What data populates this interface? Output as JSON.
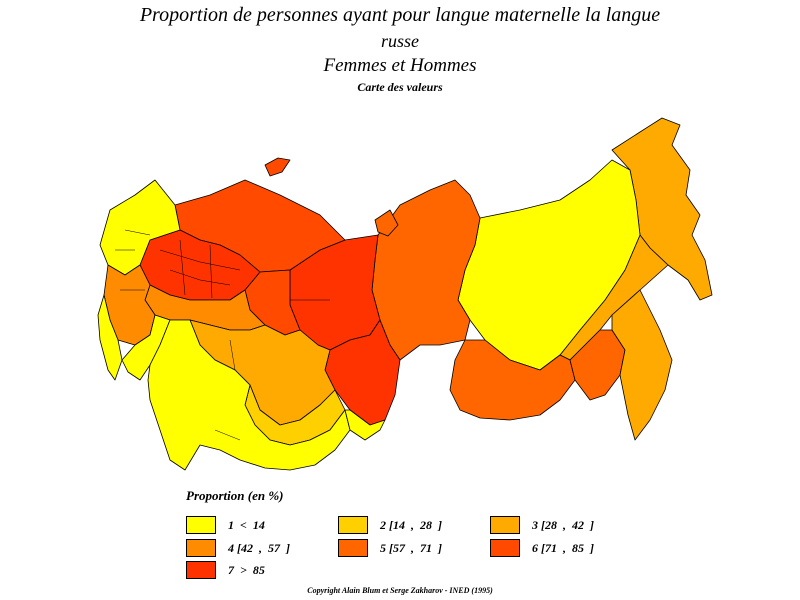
{
  "title": {
    "line1": "Proportion de personnes ayant pour langue maternelle la langue",
    "line2": "russe",
    "line3": "Femmes et Hommes",
    "line4": "Carte des valeurs"
  },
  "legend": {
    "title": "Proportion (en %)",
    "classes": [
      {
        "label": "1  <  14",
        "color": "#ffff00"
      },
      {
        "label": "2 [14  ,  28  ]",
        "color": "#ffd000"
      },
      {
        "label": "3 [28  ,  42  ]",
        "color": "#ffaa00"
      },
      {
        "label": "4 [42  ,  57  ]",
        "color": "#ff8c00"
      },
      {
        "label": "5 [57  ,  71  ]",
        "color": "#ff6600"
      },
      {
        "label": "6 [71  ,  85  ]",
        "color": "#ff4a00"
      },
      {
        "label": "7  >  85",
        "color": "#ff3300"
      }
    ]
  },
  "copyright": "Copyright Alain Blum et Serge Zakharov  -  INED (1995)"
}
